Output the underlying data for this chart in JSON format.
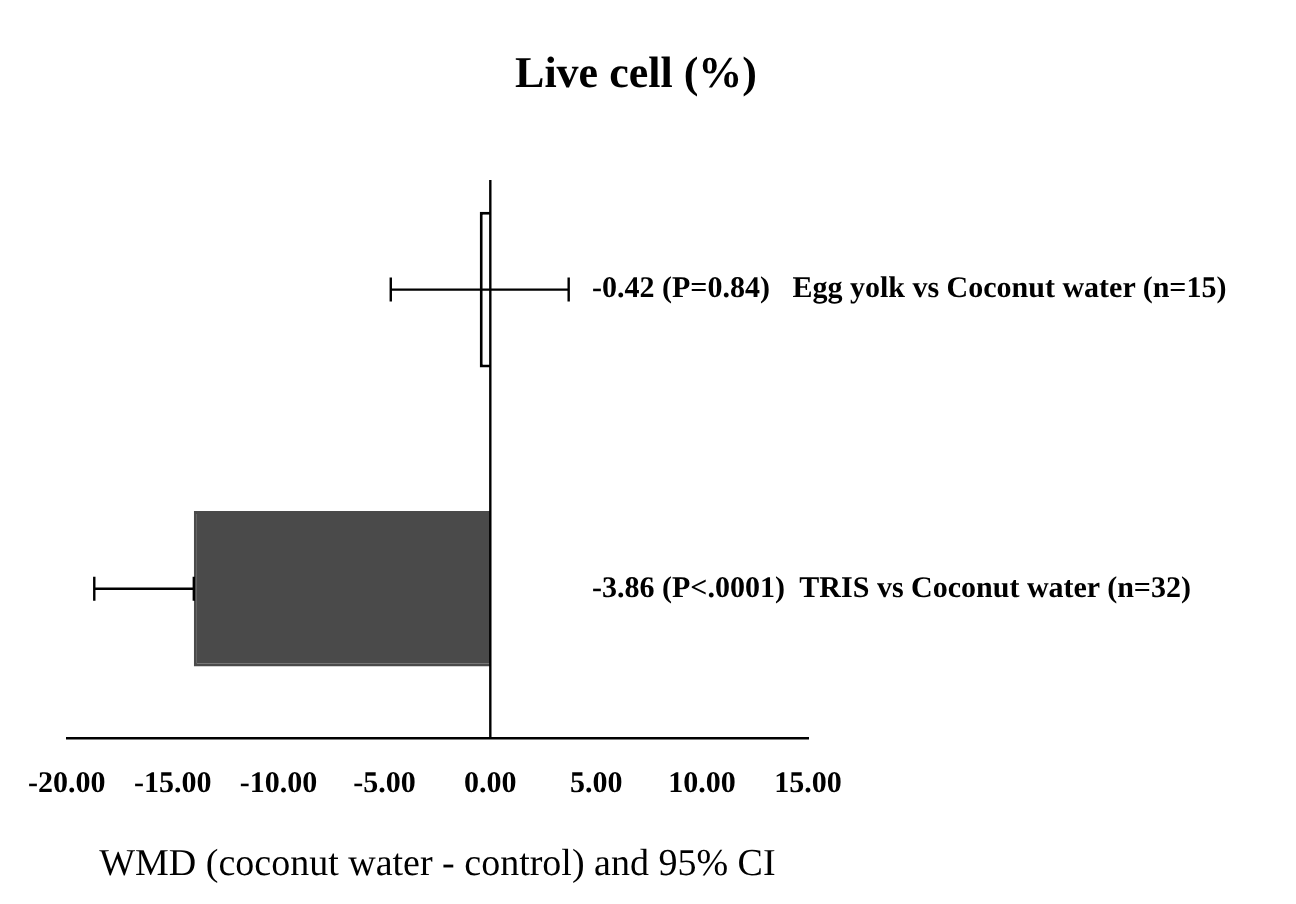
{
  "chart_data": {
    "type": "bar",
    "orientation": "horizontal",
    "title": "Live cell (%)",
    "xlabel": "WMD (coconut water - control) and 95% CI",
    "categories": [
      null,
      null
    ],
    "values": [
      -0.5,
      -14.0
    ],
    "ref_lines": [
      {
        "axis": "x",
        "value": 0,
        "color": "#000000"
      }
    ],
    "colors": [
      "#ffffff",
      "#4a4a4a"
    ],
    "errors": [
      [
        -4.7,
        3.7
      ],
      [
        -18.7,
        -14.0
      ]
    ],
    "xlim": [
      -20,
      15
    ],
    "xticks": [
      {
        "value": -20,
        "label": "-20.00"
      },
      {
        "value": -15,
        "label": "-15.00"
      },
      {
        "value": -10,
        "label": "-10.00"
      },
      {
        "value": -5,
        "label": "-5.00"
      },
      {
        "value": 0,
        "label": "0.00"
      },
      {
        "value": 5,
        "label": "5.00"
      },
      {
        "value": 10,
        "label": "10.00"
      },
      {
        "value": 15,
        "label": "15.00"
      }
    ],
    "annotations": [
      "-0.42 (P=0.84)   Egg yolk vs Coconut water (n=15)",
      "-3.86 (P<.0001)  TRIS vs Coconut water (n=32)"
    ],
    "grid": false,
    "legend": false
  }
}
